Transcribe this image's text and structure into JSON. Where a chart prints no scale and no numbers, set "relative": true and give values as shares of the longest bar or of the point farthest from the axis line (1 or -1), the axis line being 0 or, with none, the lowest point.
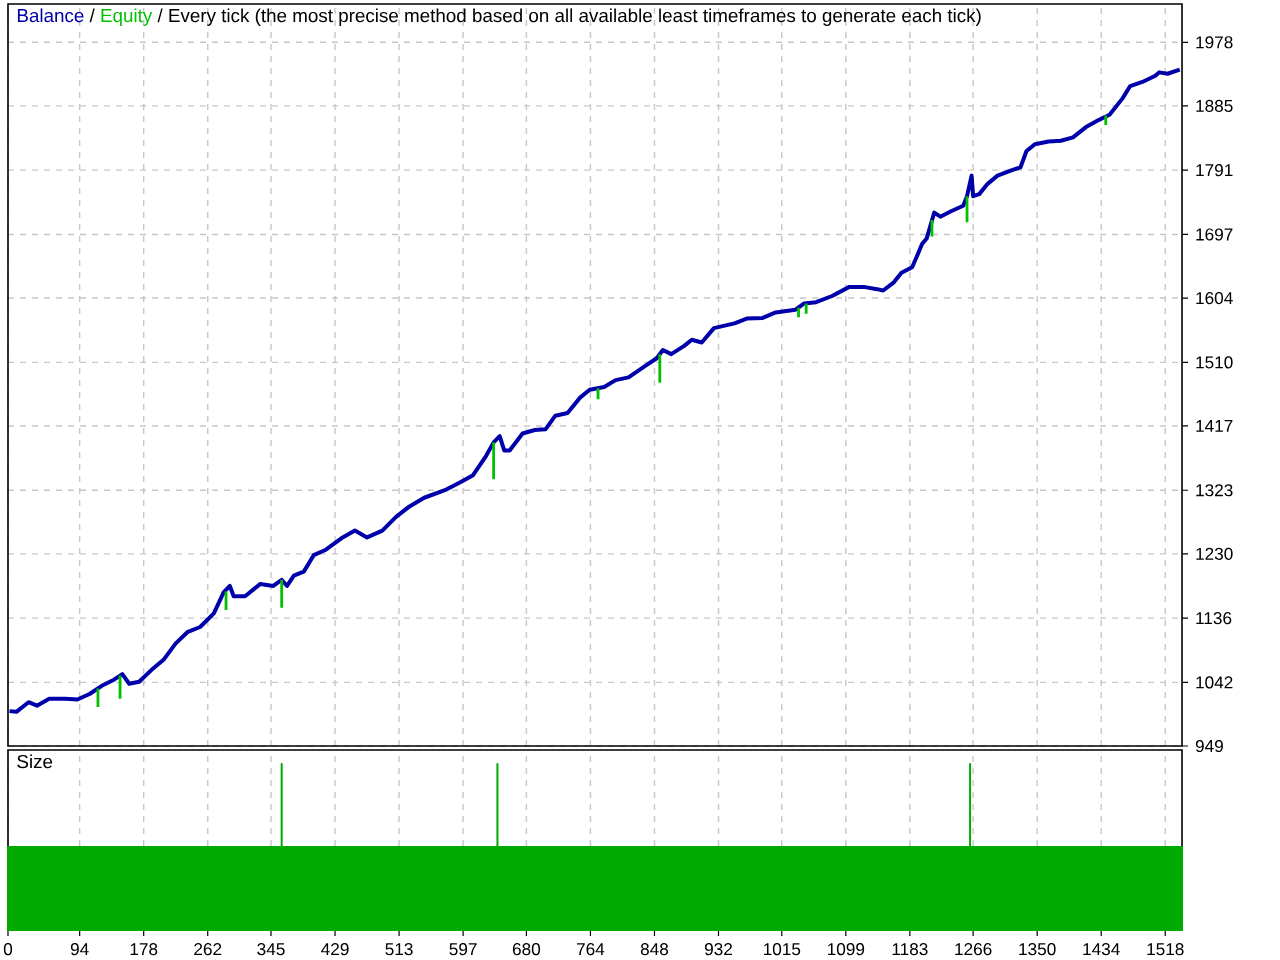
{
  "chart_data": [
    {
      "type": "line",
      "title": "Every tick (the most precise method based on all available least timeframes to generate each tick)",
      "annotations": [
        "/",
        "/"
      ],
      "legend": "top left",
      "grid": true,
      "tick_labels": "y",
      "xlim": [
        0,
        1540
      ],
      "ylim": [
        949,
        2034
      ],
      "xticks": [
        0,
        94,
        178,
        262,
        345,
        429,
        513,
        597,
        680,
        764,
        848,
        932,
        1015,
        1099,
        1183,
        1266,
        1350,
        1434,
        1518
      ],
      "yticks": [
        949,
        1042,
        1136,
        1230,
        1323,
        1417,
        1510,
        1604,
        1697,
        1791,
        1885,
        1978
      ],
      "series": [
        {
          "name": "Balance",
          "color": "#0000aa",
          "x": [
            2,
            11,
            27,
            38,
            54,
            75,
            91,
            107,
            123,
            139,
            150,
            159,
            172,
            188,
            204,
            220,
            236,
            252,
            270,
            283,
            291,
            296,
            311,
            331,
            348,
            359,
            366,
            375,
            388,
            401,
            417,
            439,
            455,
            471,
            491,
            509,
            525,
            546,
            573,
            594,
            610,
            627,
            637,
            645,
            651,
            658,
            675,
            691,
            705,
            718,
            734,
            750,
            763,
            782,
            797,
            814,
            835,
            851,
            859,
            870,
            887,
            897,
            910,
            926,
            953,
            969,
            990,
            1007,
            1033,
            1044,
            1060,
            1081,
            1103,
            1124,
            1140,
            1148,
            1162,
            1172,
            1186,
            1193,
            1199,
            1205,
            1215,
            1223,
            1237,
            1253,
            1258,
            1264,
            1266,
            1274,
            1285,
            1298,
            1317,
            1328,
            1336,
            1347,
            1365,
            1381,
            1397,
            1414,
            1430,
            1445,
            1462,
            1472,
            1488,
            1505,
            1510,
            1521,
            1537
          ],
          "values": [
            1000,
            999,
            1013,
            1008,
            1018,
            1018,
            1017,
            1025,
            1037,
            1046,
            1054,
            1040,
            1043,
            1060,
            1075,
            1099,
            1116,
            1123,
            1143,
            1174,
            1183,
            1168,
            1168,
            1186,
            1183,
            1192,
            1183,
            1198,
            1204,
            1228,
            1236,
            1254,
            1264,
            1254,
            1264,
            1284,
            1298,
            1312,
            1323,
            1335,
            1345,
            1373,
            1393,
            1402,
            1381,
            1381,
            1406,
            1411,
            1412,
            1432,
            1436,
            1458,
            1470,
            1474,
            1484,
            1488,
            1504,
            1516,
            1528,
            1522,
            1534,
            1543,
            1539,
            1560,
            1567,
            1574,
            1575,
            1583,
            1587,
            1596,
            1598,
            1607,
            1620,
            1620,
            1617,
            1615,
            1627,
            1641,
            1649,
            1667,
            1683,
            1691,
            1729,
            1723,
            1731,
            1739,
            1753,
            1783,
            1753,
            1756,
            1771,
            1783,
            1791,
            1795,
            1819,
            1829,
            1833,
            1834,
            1839,
            1854,
            1864,
            1872,
            1896,
            1914,
            1920,
            1929,
            1934,
            1932,
            1938
          ]
        },
        {
          "name": "Equity",
          "color": "#00c000",
          "x": [
            118,
            118,
            null,
            147,
            147,
            null,
            286,
            286,
            null,
            359,
            359,
            null,
            637,
            637,
            null,
            774,
            774,
            null,
            855,
            855,
            null,
            1037,
            1037,
            null,
            1047,
            1047,
            null,
            1212,
            1212,
            null,
            1258,
            1258,
            null,
            1440,
            1440
          ],
          "values": [
            1033,
            1006,
            null,
            1052,
            1018,
            null,
            1175,
            1148,
            null,
            1192,
            1151,
            null,
            1393,
            1339,
            null,
            1472,
            1456,
            null,
            1522,
            1480,
            null,
            1590,
            1576,
            null,
            1596,
            1581,
            null,
            1718,
            1694,
            null,
            1753,
            1715,
            null,
            1871,
            1857
          ]
        }
      ]
    },
    {
      "type": "area",
      "title": "Size",
      "relative": true,
      "grid": "x",
      "tick_labels": "x",
      "color": "#00aa00",
      "xlim": [
        0,
        1540
      ],
      "xticks": [
        0,
        94,
        178,
        262,
        345,
        429,
        513,
        597,
        680,
        764,
        848,
        932,
        1015,
        1099,
        1183,
        1266,
        1350,
        1434,
        1518
      ],
      "x": [
        0,
        359,
        359,
        359,
        642,
        642,
        642,
        1262,
        1262,
        1262,
        1540
      ],
      "values": [
        0.5,
        0.5,
        1,
        0.5,
        0.5,
        1,
        0.5,
        0.5,
        1,
        0.5,
        0.5
      ]
    }
  ]
}
